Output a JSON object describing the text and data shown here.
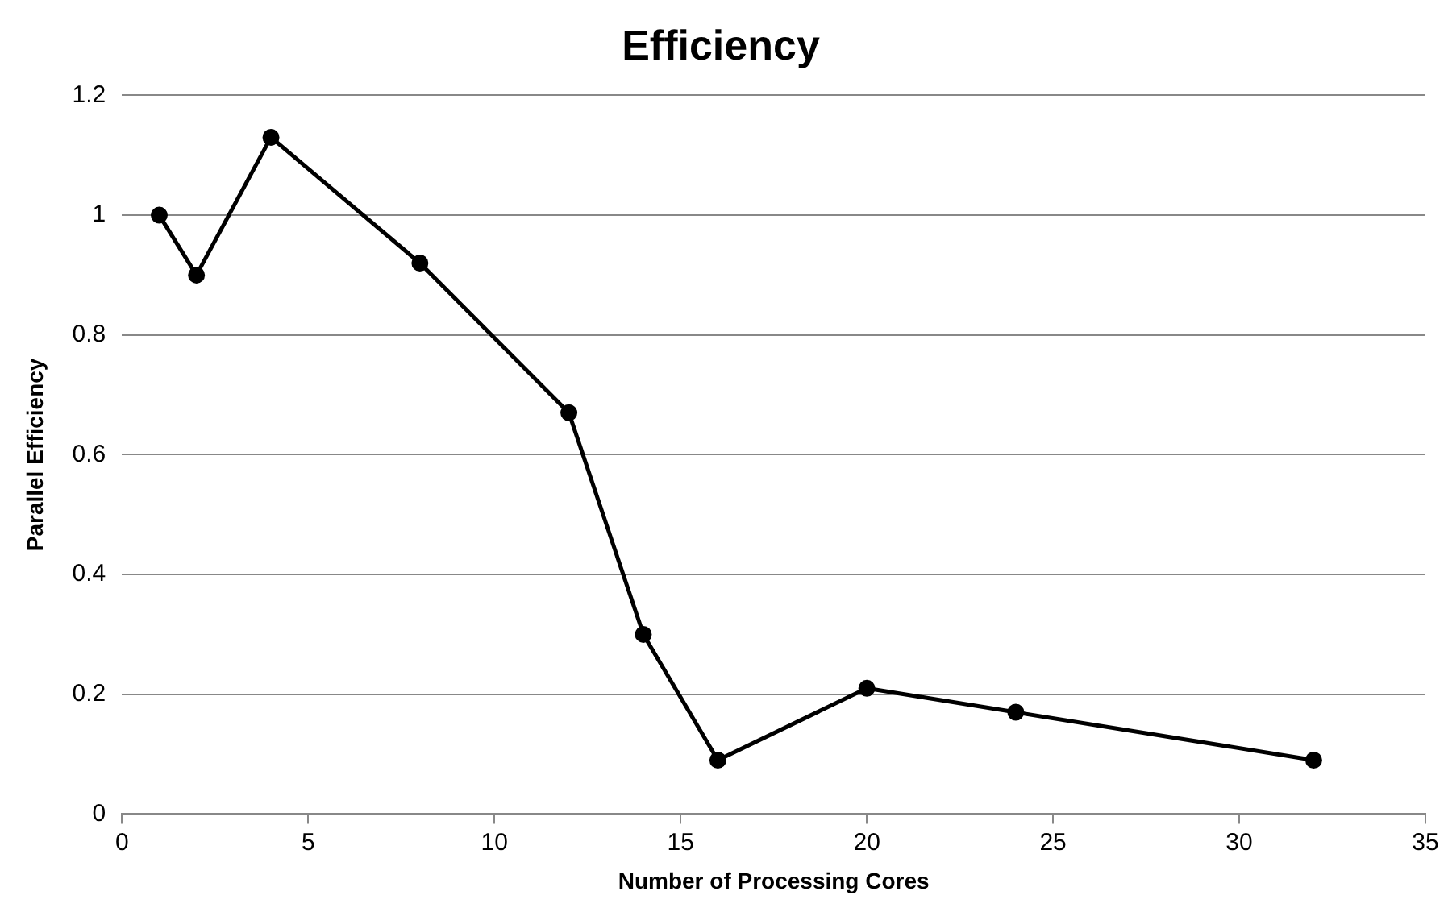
{
  "chart_data": {
    "type": "line",
    "title": "Efficiency",
    "xlabel": "Number of Processing Cores",
    "ylabel": "Parallel Efficiency",
    "x": [
      1,
      2,
      4,
      8,
      12,
      14,
      16,
      20,
      24,
      32
    ],
    "series": [
      {
        "color": "#000000",
        "values": [
          1.0,
          0.9,
          1.13,
          0.92,
          0.67,
          0.3,
          0.09,
          0.21,
          0.17,
          0.09
        ]
      }
    ],
    "xlim": [
      0,
      35
    ],
    "xticks": [
      0,
      5,
      10,
      15,
      20,
      25,
      30,
      35
    ],
    "ylim": [
      0,
      1.2
    ],
    "yticks": [
      0,
      0.2,
      0.4,
      0.6,
      0.8,
      1,
      1.2
    ],
    "grid": "y",
    "legend": false,
    "marker": "circle",
    "line_style": "solid"
  }
}
